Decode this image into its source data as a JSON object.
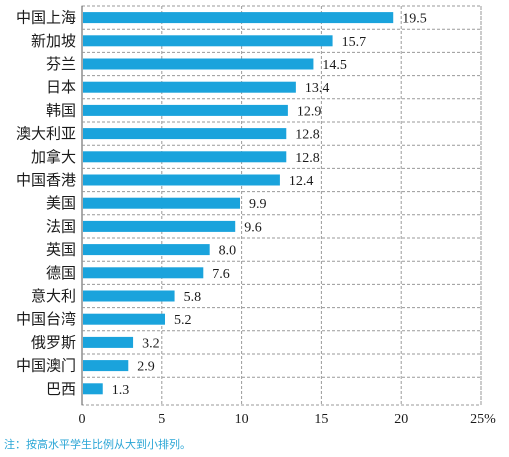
{
  "chart_data": {
    "type": "bar",
    "orientation": "horizontal",
    "categories": [
      "中国上海",
      "新加坡",
      "芬兰",
      "日本",
      "韩国",
      "澳大利亚",
      "加拿大",
      "中国香港",
      "美国",
      "法国",
      "英国",
      "德国",
      "意大利",
      "中国台湾",
      "俄罗斯",
      "中国澳门",
      "巴西"
    ],
    "values": [
      19.5,
      15.7,
      14.5,
      13.4,
      12.9,
      12.8,
      12.8,
      12.4,
      9.9,
      9.6,
      8.0,
      7.6,
      5.8,
      5.2,
      3.2,
      2.9,
      1.3
    ],
    "value_labels": [
      "19.5",
      "15.7",
      "14.5",
      "13.4",
      "12.9",
      "12.8",
      "12.8",
      "12.4",
      "9.9",
      "9.6",
      "8.0",
      "7.6",
      "5.8",
      "5.2",
      "3.2",
      "2.9",
      "1.3"
    ],
    "xlim": [
      0,
      25
    ],
    "ticks": [
      0,
      5,
      10,
      15,
      20,
      25
    ],
    "tick_labels": [
      "0",
      "5",
      "10",
      "15",
      "20",
      "25%"
    ],
    "grid": "vertical dashed",
    "bar_color": "#1aa3dc"
  },
  "note": "注：按高水平学生比例从大到小排列。"
}
